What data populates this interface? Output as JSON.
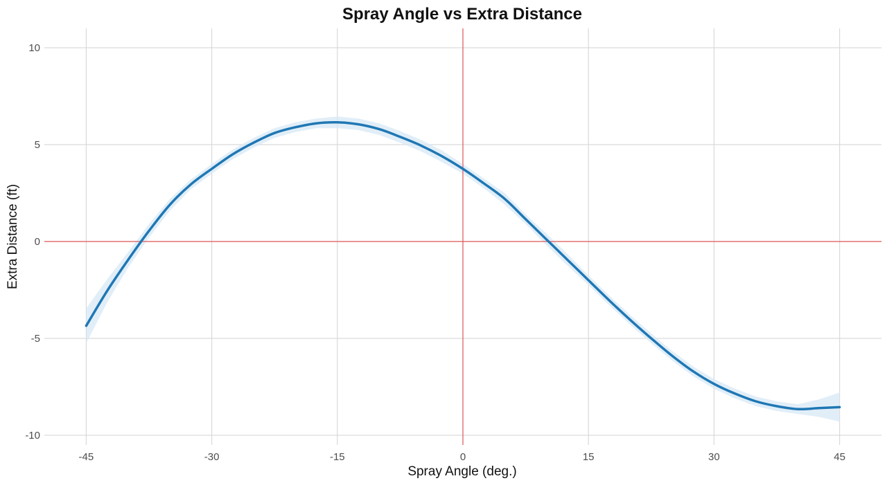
{
  "chart_data": {
    "type": "line",
    "title": "Spray Angle vs Extra Distance",
    "xlabel": "Spray Angle (deg.)",
    "ylabel": "Extra Distance (ft)",
    "xlim": [
      -50,
      50
    ],
    "ylim": [
      -10.5,
      11
    ],
    "xticks": [
      -45,
      -30,
      -15,
      0,
      15,
      30,
      45
    ],
    "yticks": [
      -10,
      -5,
      0,
      5,
      10
    ],
    "xtick_labels": [
      "-45",
      "-30",
      "-15",
      "0",
      "15",
      "30",
      "45"
    ],
    "ytick_labels": [
      "-10",
      "-5",
      "0",
      "5",
      "10"
    ],
    "grid": true,
    "reference_lines": {
      "x": 0,
      "y": 0,
      "color": "#e05a5a"
    },
    "colors": {
      "line": "#1f77b4",
      "band": "#d7e8f5",
      "grid": "#d9d9d9"
    },
    "series": [
      {
        "x": [
          -45,
          -42.5,
          -40,
          -37.5,
          -35,
          -32.5,
          -30,
          -27.5,
          -25,
          -22.5,
          -20,
          -17.5,
          -15,
          -12.5,
          -10,
          -7.5,
          -5,
          -2.5,
          0,
          2.5,
          5,
          7.5,
          10,
          12.5,
          15,
          17.5,
          20,
          22.5,
          25,
          27.5,
          30,
          32.5,
          35,
          37.5,
          40,
          42.5,
          45
        ],
        "y": [
          -4.35,
          -2.55,
          -0.95,
          0.55,
          1.9,
          2.95,
          3.75,
          4.5,
          5.1,
          5.6,
          5.9,
          6.1,
          6.15,
          6.05,
          5.8,
          5.4,
          4.95,
          4.4,
          3.75,
          3.0,
          2.2,
          1.15,
          0.1,
          -0.95,
          -2.0,
          -3.05,
          -4.05,
          -5.0,
          -5.9,
          -6.7,
          -7.35,
          -7.85,
          -8.25,
          -8.5,
          -8.65,
          -8.6,
          -8.55
        ],
        "ci_lower": [
          -5.25,
          -3.15,
          -1.35,
          0.2,
          1.6,
          2.7,
          3.5,
          4.25,
          4.85,
          5.35,
          5.65,
          5.85,
          5.85,
          5.75,
          5.5,
          5.1,
          4.65,
          4.1,
          3.5,
          2.75,
          1.9,
          0.9,
          -0.2,
          -1.25,
          -2.25,
          -3.3,
          -4.3,
          -5.25,
          -6.15,
          -6.95,
          -7.6,
          -8.1,
          -8.5,
          -8.75,
          -8.9,
          -9.05,
          -9.3
        ],
        "ci_upper": [
          -3.45,
          -1.95,
          -0.55,
          0.9,
          2.2,
          3.2,
          4.0,
          4.75,
          5.35,
          5.85,
          6.15,
          6.35,
          6.45,
          6.35,
          6.1,
          5.7,
          5.25,
          4.7,
          4.0,
          3.25,
          2.5,
          1.4,
          0.4,
          -0.65,
          -1.75,
          -2.8,
          -3.8,
          -4.75,
          -5.65,
          -6.45,
          -7.1,
          -7.6,
          -8.0,
          -8.25,
          -8.4,
          -8.15,
          -7.8
        ]
      }
    ]
  }
}
